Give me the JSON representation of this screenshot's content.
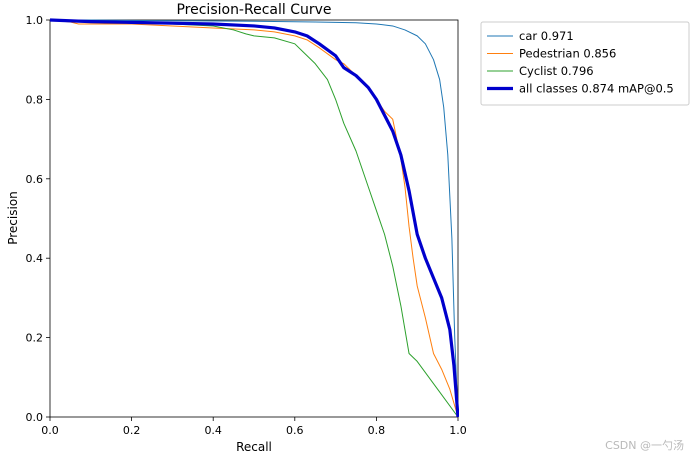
{
  "chart_data": {
    "type": "line",
    "title": "Precision-Recall Curve",
    "xlabel": "Recall",
    "ylabel": "Precision",
    "xlim": [
      0,
      1
    ],
    "ylim": [
      0,
      1
    ],
    "xticks": [
      "0.0",
      "0.2",
      "0.4",
      "0.6",
      "0.8",
      "1.0"
    ],
    "yticks": [
      "0.0",
      "0.2",
      "0.4",
      "0.6",
      "0.8",
      "1.0"
    ],
    "grid": false,
    "legend_position": "outside-top-right",
    "series": [
      {
        "name": "car 0.971",
        "color": "#1f77b4",
        "x": [
          0.0,
          0.1,
          0.3,
          0.5,
          0.65,
          0.75,
          0.8,
          0.84,
          0.87,
          0.9,
          0.92,
          0.94,
          0.955,
          0.965,
          0.975,
          0.985,
          0.992,
          1.0
        ],
        "y": [
          1.0,
          1.0,
          0.998,
          0.997,
          0.995,
          0.993,
          0.99,
          0.985,
          0.975,
          0.96,
          0.94,
          0.9,
          0.85,
          0.78,
          0.66,
          0.45,
          0.2,
          0.0
        ]
      },
      {
        "name": "Pedestrian 0.856",
        "color": "#ff7f0e",
        "x": [
          0.0,
          0.05,
          0.07,
          0.2,
          0.4,
          0.5,
          0.55,
          0.6,
          0.63,
          0.66,
          0.7,
          0.72,
          0.75,
          0.78,
          0.8,
          0.82,
          0.84,
          0.85,
          0.86,
          0.87,
          0.88,
          0.89,
          0.9,
          0.92,
          0.94,
          0.96,
          0.98,
          1.0
        ],
        "y": [
          1.0,
          0.995,
          0.99,
          0.99,
          0.98,
          0.975,
          0.97,
          0.96,
          0.95,
          0.93,
          0.9,
          0.89,
          0.86,
          0.83,
          0.8,
          0.77,
          0.75,
          0.7,
          0.65,
          0.58,
          0.48,
          0.4,
          0.33,
          0.25,
          0.16,
          0.12,
          0.07,
          0.0
        ]
      },
      {
        "name": "Cyclist 0.796",
        "color": "#2ca02c",
        "x": [
          0.0,
          0.1,
          0.3,
          0.4,
          0.45,
          0.48,
          0.5,
          0.55,
          0.6,
          0.62,
          0.65,
          0.68,
          0.7,
          0.72,
          0.75,
          0.78,
          0.8,
          0.82,
          0.84,
          0.86,
          0.88,
          0.9,
          0.95,
          1.0
        ],
        "y": [
          1.0,
          0.995,
          0.99,
          0.985,
          0.975,
          0.965,
          0.96,
          0.955,
          0.94,
          0.92,
          0.89,
          0.85,
          0.8,
          0.74,
          0.67,
          0.58,
          0.52,
          0.46,
          0.38,
          0.28,
          0.16,
          0.14,
          0.07,
          0.0
        ]
      },
      {
        "name": "all classes 0.874 mAP@0.5",
        "color": "#0000cc",
        "bold": true,
        "x": [
          0.0,
          0.1,
          0.2,
          0.3,
          0.4,
          0.5,
          0.55,
          0.6,
          0.63,
          0.66,
          0.7,
          0.72,
          0.75,
          0.78,
          0.8,
          0.82,
          0.84,
          0.86,
          0.88,
          0.9,
          0.92,
          0.94,
          0.96,
          0.97,
          0.98,
          0.99,
          1.0
        ],
        "y": [
          1.0,
          0.996,
          0.994,
          0.992,
          0.99,
          0.985,
          0.98,
          0.97,
          0.96,
          0.94,
          0.91,
          0.88,
          0.86,
          0.83,
          0.8,
          0.76,
          0.72,
          0.66,
          0.57,
          0.46,
          0.4,
          0.35,
          0.3,
          0.26,
          0.22,
          0.13,
          0.0
        ]
      }
    ]
  },
  "watermark": "CSDN @一勺汤"
}
